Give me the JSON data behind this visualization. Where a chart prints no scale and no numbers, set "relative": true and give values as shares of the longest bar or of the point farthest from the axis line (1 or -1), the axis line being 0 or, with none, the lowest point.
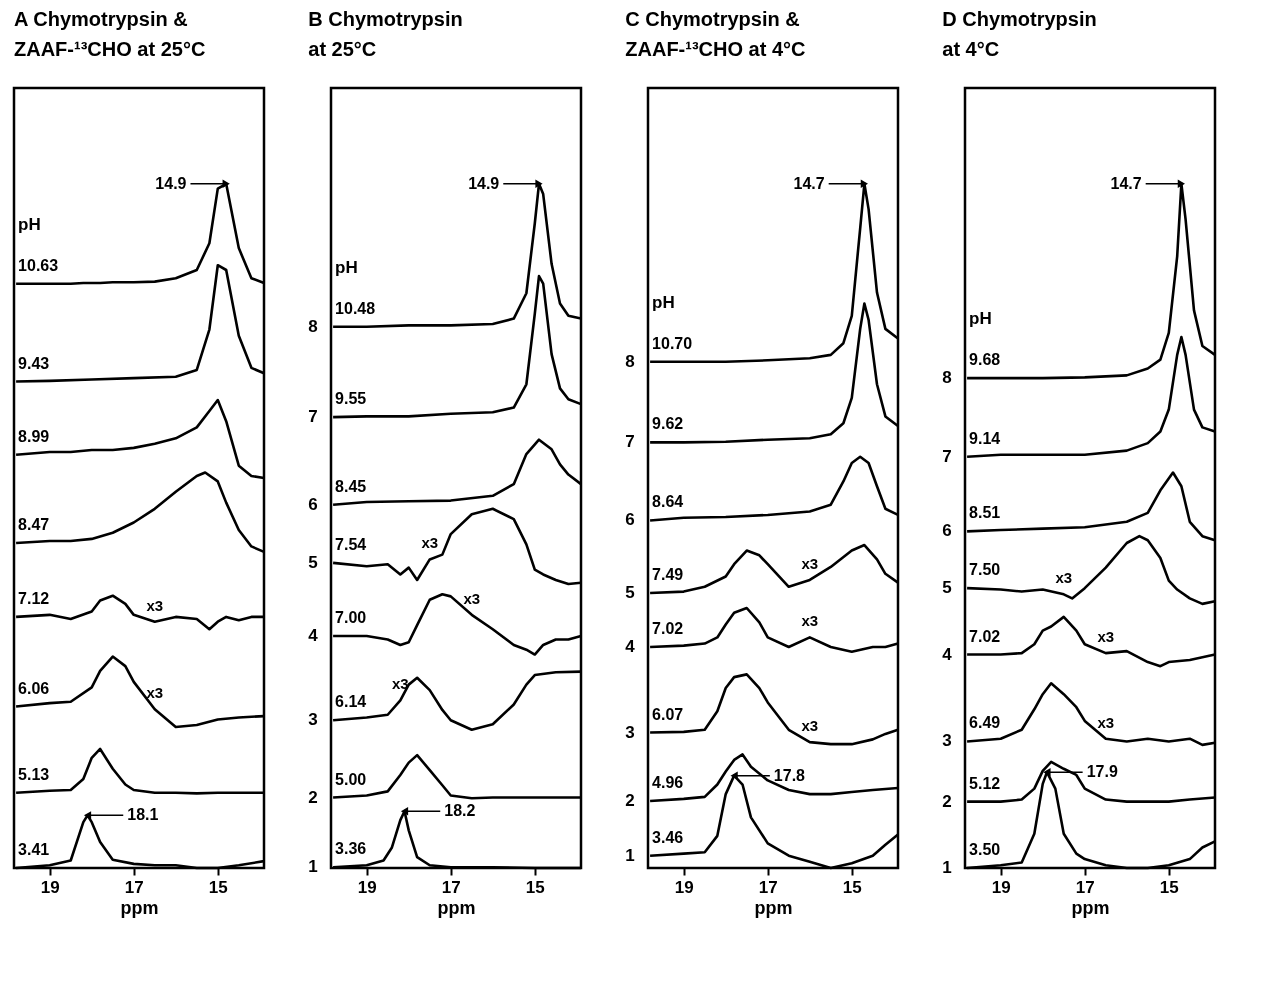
{
  "chart_data": [
    {
      "type": "line",
      "title": "A Chymotrypsin &\nZAAF-¹³CHO at 25°C",
      "xlabel": "ppm",
      "legend_title": "pH",
      "relative": true,
      "xlim": [
        19.85,
        13.9
      ],
      "xticks": [
        19,
        17,
        15
      ],
      "series": [
        {
          "name": "10.63",
          "color": "#000000",
          "x": [
            19.8,
            19,
            18.5,
            18.2,
            18,
            17.8,
            17.5,
            17.2,
            17,
            16.5,
            16,
            15.5,
            15.2,
            15,
            14.8,
            14.5,
            14.2,
            13.9
          ],
          "values": [
            0.854,
            0.854,
            0.854,
            0.855,
            0.855,
            0.855,
            0.856,
            0.856,
            0.856,
            0.857,
            0.862,
            0.874,
            0.913,
            0.993,
            1,
            0.906,
            0.862,
            0.855
          ]
        },
        {
          "name": "9.43",
          "color": "#000000",
          "x": [
            19.8,
            19,
            18,
            17,
            16,
            15.5,
            15.2,
            15,
            14.8,
            14.5,
            14.2,
            13.9
          ],
          "values": [
            0.711,
            0.712,
            0.714,
            0.716,
            0.718,
            0.728,
            0.787,
            0.881,
            0.874,
            0.778,
            0.731,
            0.723
          ]
        },
        {
          "name": "8.99",
          "color": "#000000",
          "x": [
            19.8,
            19,
            18.5,
            18,
            17.5,
            17,
            16.5,
            16,
            15.5,
            15.2,
            15,
            14.8,
            14.5,
            14.2,
            13.9
          ],
          "values": [
            0.604,
            0.608,
            0.608,
            0.611,
            0.611,
            0.614,
            0.62,
            0.628,
            0.644,
            0.668,
            0.684,
            0.653,
            0.588,
            0.573,
            0.57
          ]
        },
        {
          "name": "8.47",
          "color": "#000000",
          "x": [
            19.8,
            19,
            18.5,
            18,
            17.5,
            17,
            16.5,
            16,
            15.5,
            15.3,
            15,
            14.8,
            14.5,
            14.2,
            13.9
          ],
          "values": [
            0.475,
            0.478,
            0.478,
            0.481,
            0.49,
            0.505,
            0.525,
            0.55,
            0.573,
            0.578,
            0.565,
            0.534,
            0.494,
            0.47,
            0.462
          ]
        },
        {
          "name": "7.12",
          "color": "#000000",
          "x": [
            19.8,
            19,
            18.5,
            18,
            17.8,
            17.5,
            17.2,
            17,
            16.5,
            16,
            15.5,
            15.2,
            15,
            14.8,
            14.5,
            14.2,
            13.9
          ],
          "values": [
            0.367,
            0.37,
            0.364,
            0.375,
            0.391,
            0.398,
            0.386,
            0.37,
            0.36,
            0.367,
            0.364,
            0.349,
            0.36,
            0.367,
            0.362,
            0.367,
            0.367
          ]
        },
        {
          "name": "6.06",
          "color": "#000000",
          "x": [
            19.8,
            19,
            18.5,
            18,
            17.8,
            17.5,
            17.2,
            17,
            16.5,
            16,
            15.5,
            15,
            14.5,
            13.9
          ],
          "values": [
            0.236,
            0.241,
            0.243,
            0.264,
            0.288,
            0.309,
            0.295,
            0.272,
            0.232,
            0.206,
            0.209,
            0.217,
            0.22,
            0.222
          ]
        },
        {
          "name": "5.13",
          "color": "#000000",
          "x": [
            19.8,
            19,
            18.5,
            18.2,
            18,
            17.8,
            17.5,
            17.2,
            17,
            16.5,
            16,
            15.5,
            15,
            14.5,
            13.9
          ],
          "values": [
            0.11,
            0.113,
            0.114,
            0.13,
            0.161,
            0.174,
            0.145,
            0.122,
            0.114,
            0.11,
            0.11,
            0.109,
            0.11,
            0.11,
            0.11
          ]
        },
        {
          "name": "3.41",
          "color": "#000000",
          "x": [
            19.8,
            19,
            18.5,
            18.2,
            18.1,
            18,
            17.8,
            17.5,
            17,
            16.5,
            16,
            15.5,
            15,
            14.5,
            13.9
          ],
          "values": [
            0,
            0.004,
            0.011,
            0.067,
            0.077,
            0.067,
            0.038,
            0.012,
            0.006,
            0.004,
            0.004,
            0,
            0,
            0.004,
            0.01
          ]
        }
      ],
      "annotations": [
        {
          "text": "14.9",
          "x": 14.8,
          "y": 1
        },
        {
          "text": "18.1",
          "x": 18.1,
          "y": 0.077
        },
        {
          "text": "x3",
          "x": 16.5,
          "y": 0.36
        },
        {
          "text": "x3",
          "x": 16.5,
          "y": 0.232
        }
      ]
    },
    {
      "type": "line",
      "title": "B Chymotrypsin\nat 25°C",
      "xlabel": "ppm",
      "legend_title": "pH",
      "relative": true,
      "xlim": [
        19.85,
        13.9
      ],
      "xticks": [
        19,
        17,
        15
      ],
      "series": [
        {
          "name": "10.48",
          "color": "#000000",
          "x": [
            19.8,
            19,
            18,
            17,
            16,
            15.5,
            15.2,
            15,
            14.9,
            14.8,
            14.6,
            14.4,
            14.2,
            13.9
          ],
          "values": [
            0.791,
            0.791,
            0.793,
            0.793,
            0.795,
            0.803,
            0.84,
            0.942,
            1,
            0.985,
            0.883,
            0.825,
            0.807,
            0.803
          ]
        },
        {
          "name": "9.55",
          "color": "#000000",
          "x": [
            19.8,
            19,
            18,
            17,
            16,
            15.5,
            15.2,
            15,
            14.9,
            14.8,
            14.6,
            14.4,
            14.2,
            13.9
          ],
          "values": [
            0.659,
            0.66,
            0.66,
            0.664,
            0.666,
            0.673,
            0.707,
            0.81,
            0.865,
            0.854,
            0.751,
            0.701,
            0.685,
            0.678
          ]
        },
        {
          "name": "8.45",
          "color": "#000000",
          "x": [
            19.8,
            19,
            18,
            17,
            16,
            15.5,
            15.2,
            14.9,
            14.6,
            14.4,
            14.2,
            13.9
          ],
          "values": [
            0.531,
            0.535,
            0.536,
            0.537,
            0.544,
            0.561,
            0.605,
            0.626,
            0.612,
            0.59,
            0.575,
            0.561
          ]
        },
        {
          "name": "7.54",
          "color": "#000000",
          "x": [
            19.8,
            19,
            18.5,
            18.2,
            18,
            17.8,
            17.5,
            17.2,
            17,
            16.5,
            16,
            15.5,
            15.2,
            15,
            14.8,
            14.5,
            14.2,
            13.9
          ],
          "values": [
            0.446,
            0.441,
            0.444,
            0.429,
            0.439,
            0.421,
            0.451,
            0.458,
            0.488,
            0.517,
            0.525,
            0.51,
            0.473,
            0.436,
            0.429,
            0.421,
            0.415,
            0.417
          ]
        },
        {
          "name": "7.00",
          "color": "#000000",
          "x": [
            19.8,
            19,
            18.5,
            18.2,
            18,
            17.8,
            17.5,
            17.2,
            17,
            16.5,
            16,
            15.5,
            15.2,
            15,
            14.8,
            14.5,
            14.2,
            13.9
          ],
          "values": [
            0.339,
            0.339,
            0.334,
            0.326,
            0.33,
            0.355,
            0.392,
            0.4,
            0.397,
            0.37,
            0.349,
            0.326,
            0.319,
            0.312,
            0.326,
            0.334,
            0.334,
            0.339
          ]
        },
        {
          "name": "6.14",
          "color": "#000000",
          "x": [
            19.8,
            19,
            18.5,
            18.2,
            18,
            17.8,
            17.5,
            17.2,
            17,
            16.5,
            16,
            15.5,
            15.2,
            15,
            14.5,
            13.9
          ],
          "values": [
            0.216,
            0.22,
            0.224,
            0.245,
            0.268,
            0.278,
            0.26,
            0.231,
            0.216,
            0.202,
            0.21,
            0.239,
            0.268,
            0.282,
            0.286,
            0.287
          ]
        },
        {
          "name": "5.00",
          "color": "#000000",
          "x": [
            19.8,
            19,
            18.5,
            18.2,
            18,
            17.8,
            17.5,
            17.2,
            17,
            16.5,
            16,
            15.5,
            15,
            14.5,
            13.9
          ],
          "values": [
            0.103,
            0.106,
            0.112,
            0.136,
            0.154,
            0.165,
            0.143,
            0.121,
            0.106,
            0.102,
            0.103,
            0.103,
            0.103,
            0.103,
            0.103
          ]
        },
        {
          "name": "3.36",
          "color": "#000000",
          "x": [
            19.8,
            19,
            18.6,
            18.4,
            18.2,
            18.1,
            18,
            17.8,
            17.5,
            17,
            16,
            15,
            13.9
          ],
          "values": [
            0.001,
            0.004,
            0.011,
            0.03,
            0.07,
            0.083,
            0.055,
            0.016,
            0.004,
            0.001,
            0.001,
            0,
            0
          ]
        }
      ],
      "annotations": [
        {
          "text": "14.9",
          "x": 14.9,
          "y": 1
        },
        {
          "text": "18.2",
          "x": 18.1,
          "y": 0.083
        },
        {
          "text": "x3",
          "x": 17.5,
          "y": 0.451
        },
        {
          "text": "x3",
          "x": 16.5,
          "y": 0.37
        },
        {
          "text": "x3",
          "x": 18.2,
          "y": 0.245
        },
        "8",
        "7",
        "6",
        "5",
        "4",
        "3",
        "2",
        "1"
      ]
    },
    {
      "type": "line",
      "title": "C Chymotrypsin &\nZAAF-¹³CHO at 4°C",
      "xlabel": "ppm",
      "legend_title": "pH",
      "relative": true,
      "xlim": [
        19.85,
        13.9
      ],
      "xticks": [
        19,
        17,
        15
      ],
      "series": [
        {
          "name": "10.70",
          "color": "#000000",
          "x": [
            19.8,
            19,
            18,
            17,
            16,
            15.5,
            15.2,
            15,
            14.8,
            14.7,
            14.6,
            14.4,
            14.2,
            13.9
          ],
          "values": [
            0.74,
            0.74,
            0.74,
            0.742,
            0.745,
            0.75,
            0.767,
            0.807,
            0.935,
            1,
            0.963,
            0.841,
            0.788,
            0.774
          ]
        },
        {
          "name": "9.62",
          "color": "#000000",
          "x": [
            19.8,
            19,
            18,
            17,
            16,
            15.5,
            15.2,
            15,
            14.8,
            14.7,
            14.6,
            14.4,
            14.2,
            13.9
          ],
          "values": [
            0.622,
            0.622,
            0.623,
            0.626,
            0.628,
            0.634,
            0.65,
            0.687,
            0.788,
            0.825,
            0.801,
            0.707,
            0.66,
            0.646
          ]
        },
        {
          "name": "8.64",
          "color": "#000000",
          "x": [
            19.8,
            19,
            18,
            17,
            16,
            15.5,
            15.2,
            15,
            14.8,
            14.6,
            14.4,
            14.2,
            13.9
          ],
          "values": [
            0.508,
            0.512,
            0.513,
            0.516,
            0.521,
            0.531,
            0.565,
            0.592,
            0.601,
            0.592,
            0.558,
            0.525,
            0.516
          ]
        },
        {
          "name": "7.49",
          "color": "#000000",
          "x": [
            19.8,
            19,
            18.5,
            18,
            17.8,
            17.5,
            17.2,
            17,
            16.5,
            16,
            15.5,
            15,
            14.7,
            14.4,
            14.2,
            13.9
          ],
          "values": [
            0.402,
            0.404,
            0.411,
            0.426,
            0.444,
            0.464,
            0.457,
            0.444,
            0.411,
            0.421,
            0.44,
            0.464,
            0.472,
            0.451,
            0.43,
            0.417
          ]
        },
        {
          "name": "7.02",
          "color": "#000000",
          "x": [
            19.8,
            19,
            18.5,
            18.2,
            18,
            17.8,
            17.5,
            17.2,
            17,
            16.5,
            16,
            15.5,
            15,
            14.5,
            14.2,
            13.9
          ],
          "values": [
            0.323,
            0.325,
            0.328,
            0.337,
            0.356,
            0.373,
            0.38,
            0.359,
            0.337,
            0.323,
            0.337,
            0.323,
            0.316,
            0.323,
            0.323,
            0.328
          ]
        },
        {
          "name": "6.07",
          "color": "#000000",
          "x": [
            19.8,
            19,
            18.5,
            18.2,
            18,
            17.8,
            17.5,
            17.2,
            17,
            16.5,
            16,
            15.5,
            15,
            14.5,
            14.2,
            13.9
          ],
          "values": [
            0.198,
            0.199,
            0.202,
            0.229,
            0.263,
            0.279,
            0.283,
            0.263,
            0.242,
            0.202,
            0.184,
            0.181,
            0.181,
            0.188,
            0.196,
            0.202
          ]
        },
        {
          "name": "4.96",
          "color": "#000000",
          "x": [
            19.8,
            19,
            18.5,
            18.2,
            18,
            17.8,
            17.6,
            17.4,
            17,
            16.5,
            16,
            15.5,
            15,
            14.5,
            13.9
          ],
          "values": [
            0.098,
            0.101,
            0.104,
            0.122,
            0.141,
            0.158,
            0.166,
            0.148,
            0.128,
            0.114,
            0.108,
            0.108,
            0.111,
            0.114,
            0.117
          ]
        },
        {
          "name": "3.46",
          "color": "#000000",
          "x": [
            19.8,
            19,
            18.5,
            18.2,
            18,
            17.8,
            17.6,
            17.4,
            17,
            16.5,
            16,
            15.5,
            15,
            14.5,
            14.2,
            13.9
          ],
          "values": [
            0.018,
            0.021,
            0.023,
            0.047,
            0.108,
            0.135,
            0.122,
            0.074,
            0.036,
            0.018,
            0.009,
            0,
            0.007,
            0.018,
            0.034,
            0.049
          ]
        }
      ],
      "annotations": [
        {
          "text": "14.7",
          "x": 14.7,
          "y": 1
        },
        {
          "text": "17.8",
          "x": 17.8,
          "y": 0.135
        },
        {
          "text": "x3",
          "x": 16,
          "y": 0.421
        },
        {
          "text": "x3",
          "x": 16,
          "y": 0.337
        },
        {
          "text": "x3",
          "x": 16,
          "y": 0.184
        },
        "8",
        "7",
        "6",
        "5",
        "4",
        "3",
        "2",
        "1"
      ]
    },
    {
      "type": "line",
      "title": "D Chymotrypsin\nat 4°C",
      "xlabel": "ppm",
      "legend_title": "pH",
      "relative": true,
      "xlim": [
        19.85,
        13.9
      ],
      "xticks": [
        19,
        17,
        15
      ],
      "series": [
        {
          "name": "9.68",
          "color": "#000000",
          "x": [
            19.8,
            19,
            18,
            17,
            16,
            15.5,
            15.2,
            15,
            14.8,
            14.7,
            14.6,
            14.4,
            14.2,
            13.9
          ],
          "values": [
            0.716,
            0.716,
            0.716,
            0.717,
            0.72,
            0.73,
            0.743,
            0.782,
            0.894,
            1,
            0.948,
            0.815,
            0.763,
            0.75
          ]
        },
        {
          "name": "9.14",
          "color": "#000000",
          "x": [
            19.8,
            19,
            18,
            17,
            16,
            15.5,
            15.2,
            15,
            14.8,
            14.7,
            14.6,
            14.4,
            14.2,
            13.9
          ],
          "values": [
            0.601,
            0.604,
            0.604,
            0.604,
            0.61,
            0.621,
            0.638,
            0.67,
            0.75,
            0.776,
            0.75,
            0.67,
            0.644,
            0.638
          ]
        },
        {
          "name": "8.51",
          "color": "#000000",
          "x": [
            19.8,
            19,
            18,
            17,
            16,
            15.5,
            15.2,
            14.9,
            14.7,
            14.5,
            14.2,
            13.9
          ],
          "values": [
            0.492,
            0.494,
            0.496,
            0.498,
            0.506,
            0.519,
            0.552,
            0.578,
            0.558,
            0.506,
            0.485,
            0.479
          ]
        },
        {
          "name": "7.50",
          "color": "#000000",
          "x": [
            19.8,
            19,
            18.5,
            18,
            17.5,
            17.3,
            17,
            16.5,
            16,
            15.7,
            15.5,
            15.2,
            15,
            14.8,
            14.5,
            14.2,
            13.9
          ],
          "values": [
            0.409,
            0.407,
            0.404,
            0.407,
            0.4,
            0.394,
            0.409,
            0.439,
            0.475,
            0.485,
            0.479,
            0.453,
            0.42,
            0.407,
            0.394,
            0.386,
            0.39
          ]
        },
        {
          "name": "7.02",
          "color": "#000000",
          "x": [
            19.8,
            19,
            18.5,
            18.2,
            18,
            17.8,
            17.5,
            17.2,
            17,
            16.5,
            16,
            15.5,
            15.2,
            15,
            14.5,
            14.2,
            13.9
          ],
          "values": [
            0.312,
            0.312,
            0.314,
            0.327,
            0.347,
            0.353,
            0.367,
            0.347,
            0.327,
            0.314,
            0.317,
            0.301,
            0.295,
            0.301,
            0.304,
            0.308,
            0.312
          ]
        },
        {
          "name": "6.49",
          "color": "#000000",
          "x": [
            19.8,
            19,
            18.5,
            18.2,
            18,
            17.8,
            17.5,
            17.2,
            17,
            16.5,
            16,
            15.5,
            15,
            14.5,
            14.2,
            13.9
          ],
          "values": [
            0.185,
            0.189,
            0.202,
            0.232,
            0.254,
            0.27,
            0.254,
            0.235,
            0.215,
            0.189,
            0.185,
            0.189,
            0.185,
            0.189,
            0.18,
            0.183
          ]
        },
        {
          "name": "5.12",
          "color": "#000000",
          "x": [
            19.8,
            19,
            18.5,
            18.2,
            18,
            17.8,
            17.5,
            17.2,
            17,
            16.5,
            16,
            15.5,
            15,
            14.5,
            13.9
          ],
          "values": [
            0.097,
            0.097,
            0.1,
            0.116,
            0.142,
            0.155,
            0.145,
            0.136,
            0.116,
            0.1,
            0.097,
            0.097,
            0.097,
            0.1,
            0.103
          ]
        },
        {
          "name": "3.50",
          "color": "#000000",
          "x": [
            19.8,
            19,
            18.5,
            18.2,
            18,
            17.9,
            17.7,
            17.5,
            17.2,
            17,
            16.5,
            16,
            15.5,
            15,
            14.5,
            14.2,
            13.9
          ],
          "values": [
            0,
            0.004,
            0.008,
            0.05,
            0.123,
            0.14,
            0.116,
            0.05,
            0.021,
            0.013,
            0.004,
            0,
            0,
            0.004,
            0.013,
            0.03,
            0.039
          ]
        }
      ],
      "annotations": [
        {
          "text": "14.7",
          "x": 14.7,
          "y": 1
        },
        {
          "text": "17.9",
          "x": 17.9,
          "y": 0.14
        },
        {
          "text": "x3",
          "x": 17.5,
          "y": 0.4
        },
        {
          "text": "x3",
          "x": 16.5,
          "y": 0.314
        },
        {
          "text": "x3",
          "x": 16.5,
          "y": 0.189
        },
        "8",
        "7",
        "6",
        "5",
        "4",
        "3",
        "2",
        "1"
      ]
    }
  ]
}
